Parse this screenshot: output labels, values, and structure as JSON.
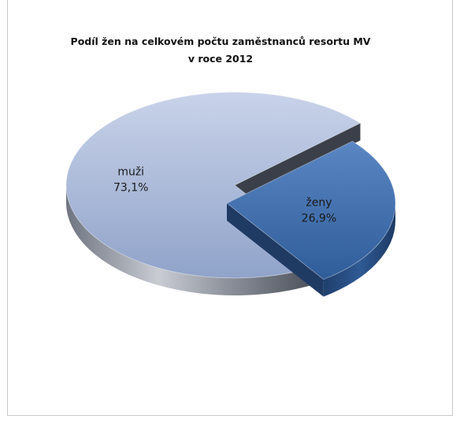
{
  "chart_data": {
    "type": "pie",
    "title_line1": "Podíl žen na celkovém počtu zaměstnanců resortu MV",
    "title_line2": "v roce 2012",
    "slices": [
      {
        "label": "muži",
        "value": 73.1,
        "value_label": "73,1%",
        "color": "#a7b6d6"
      },
      {
        "label": "ženy",
        "value": 26.9,
        "value_label": "26,9%",
        "color": "#3f6aa8"
      }
    ],
    "style": "3d-exploded"
  }
}
